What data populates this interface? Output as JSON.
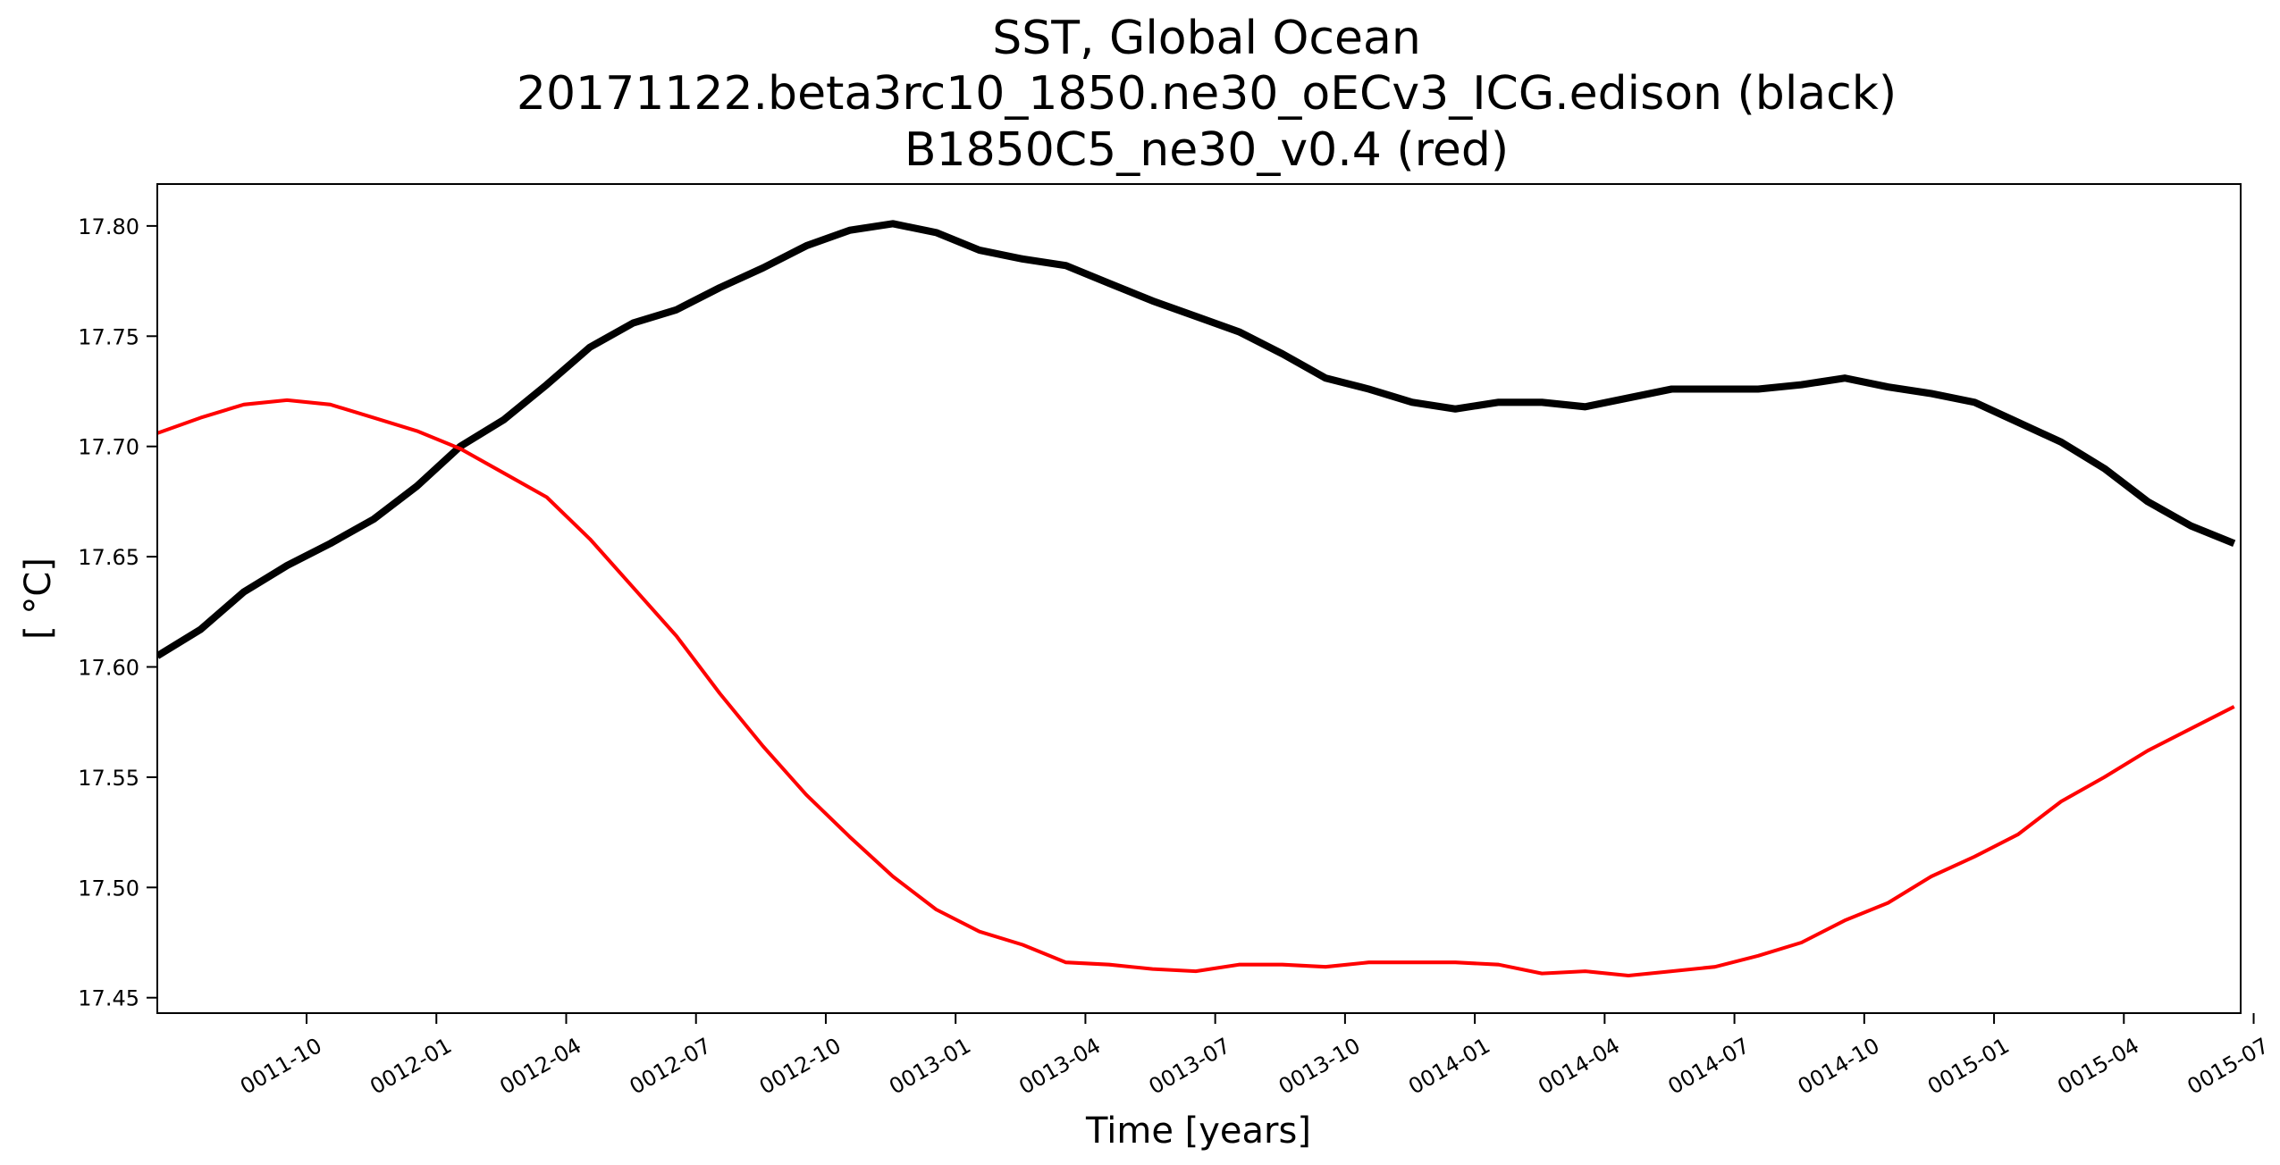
{
  "chart_data": {
    "type": "line",
    "title": [
      "SST, Global Ocean",
      "20171122.beta3rc10_1850.ne30_oECv3_ICG.edison (black)",
      "B1850C5_ne30_v0.4 (red)"
    ],
    "xlabel": "Time [years]",
    "ylabel": "[$^\\circ$C]",
    "ylabel_display": "[ °C]",
    "xlim": [
      -3.45,
      44.7
    ],
    "ylim": [
      17.443,
      17.819
    ],
    "x_ticks": [
      {
        "month": 0,
        "label": "0011-10"
      },
      {
        "month": 3,
        "label": "0012-01"
      },
      {
        "month": 6,
        "label": "0012-04"
      },
      {
        "month": 9,
        "label": "0012-07"
      },
      {
        "month": 12,
        "label": "0012-10"
      },
      {
        "month": 15,
        "label": "0013-01"
      },
      {
        "month": 18,
        "label": "0013-04"
      },
      {
        "month": 21,
        "label": "0013-07"
      },
      {
        "month": 24,
        "label": "0013-10"
      },
      {
        "month": 27,
        "label": "0014-01"
      },
      {
        "month": 30,
        "label": "0014-04"
      },
      {
        "month": 33,
        "label": "0014-07"
      },
      {
        "month": 36,
        "label": "0014-10"
      },
      {
        "month": 39,
        "label": "0015-01"
      },
      {
        "month": 42,
        "label": "0015-04"
      },
      {
        "month": 45,
        "label": "0015-07"
      }
    ],
    "y_ticks": [
      17.45,
      17.5,
      17.55,
      17.6,
      17.65,
      17.7,
      17.75,
      17.8
    ],
    "y_tick_labels": [
      "17.45",
      "17.50",
      "17.55",
      "17.60",
      "17.65",
      "17.70",
      "17.75",
      "17.80"
    ],
    "grid": false,
    "series": [
      {
        "color": "#000000",
        "linewidth": 3,
        "x": [
          -3.45,
          -2.45,
          -1.45,
          -0.45,
          0.55,
          1.55,
          2.55,
          3.55,
          4.55,
          5.55,
          6.55,
          7.55,
          8.55,
          9.55,
          10.55,
          11.55,
          12.55,
          13.55,
          14.55,
          15.55,
          16.55,
          17.55,
          18.55,
          19.55,
          20.55,
          21.55,
          22.55,
          23.55,
          24.55,
          25.55,
          26.55,
          27.55,
          28.55,
          29.55,
          30.55,
          31.55,
          32.55,
          33.55,
          34.55,
          35.55,
          36.55,
          37.55,
          38.55,
          39.55,
          40.55,
          41.55,
          42.55,
          43.55,
          44.55
        ],
        "values": [
          17.605,
          17.617,
          17.634,
          17.646,
          17.656,
          17.667,
          17.682,
          17.7,
          17.712,
          17.728,
          17.745,
          17.756,
          17.762,
          17.772,
          17.781,
          17.791,
          17.798,
          17.801,
          17.797,
          17.789,
          17.785,
          17.782,
          17.774,
          17.766,
          17.759,
          17.752,
          17.742,
          17.731,
          17.726,
          17.72,
          17.717,
          17.72,
          17.72,
          17.718,
          17.722,
          17.726,
          17.726,
          17.726,
          17.728,
          17.731,
          17.727,
          17.724,
          17.72,
          17.711,
          17.702,
          17.69,
          17.675,
          17.664,
          17.656
        ]
      },
      {
        "color": "#ff0000",
        "linewidth": 1.5,
        "x": [
          -3.45,
          -2.45,
          -1.45,
          -0.45,
          0.55,
          1.55,
          2.55,
          3.55,
          4.55,
          5.55,
          6.55,
          7.55,
          8.55,
          9.55,
          10.55,
          11.55,
          12.55,
          13.55,
          14.55,
          15.55,
          16.55,
          17.55,
          18.55,
          19.55,
          20.55,
          21.55,
          22.55,
          23.55,
          24.55,
          25.55,
          26.55,
          27.55,
          28.55,
          29.55,
          30.55,
          31.55,
          32.55,
          33.55,
          34.55,
          35.55,
          36.55,
          37.55,
          38.55,
          39.55,
          40.55,
          41.55,
          42.55,
          43.55,
          44.55
        ],
        "values": [
          17.706,
          17.713,
          17.719,
          17.721,
          17.719,
          17.713,
          17.707,
          17.699,
          17.688,
          17.677,
          17.658,
          17.636,
          17.614,
          17.588,
          17.564,
          17.542,
          17.523,
          17.505,
          17.49,
          17.48,
          17.474,
          17.466,
          17.465,
          17.463,
          17.462,
          17.465,
          17.465,
          17.464,
          17.466,
          17.466,
          17.466,
          17.465,
          17.461,
          17.462,
          17.46,
          17.462,
          17.464,
          17.469,
          17.475,
          17.485,
          17.493,
          17.505,
          17.514,
          17.524,
          17.539,
          17.55,
          17.562,
          17.572,
          17.582
        ]
      }
    ]
  }
}
